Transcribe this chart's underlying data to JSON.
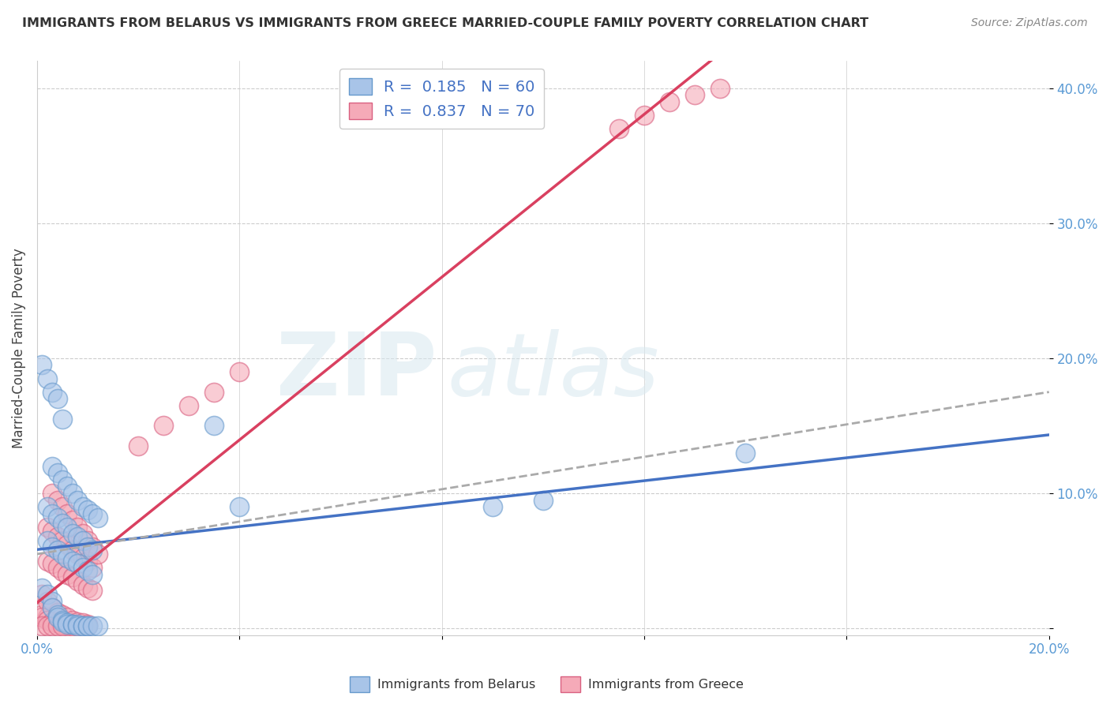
{
  "title": "IMMIGRANTS FROM BELARUS VS IMMIGRANTS FROM GREECE MARRIED-COUPLE FAMILY POVERTY CORRELATION CHART",
  "source": "Source: ZipAtlas.com",
  "ylabel": "Married-Couple Family Poverty",
  "xlim": [
    0.0,
    0.2
  ],
  "ylim": [
    -0.005,
    0.42
  ],
  "xticks": [
    0.0,
    0.04,
    0.08,
    0.12,
    0.16,
    0.2
  ],
  "yticks": [
    0.0,
    0.1,
    0.2,
    0.3,
    0.4
  ],
  "xtick_labels": [
    "0.0%",
    "",
    "",
    "",
    "",
    "20.0%"
  ],
  "ytick_labels": [
    "",
    "10.0%",
    "20.0%",
    "30.0%",
    "40.0%"
  ],
  "belarus_color": "#a8c4e8",
  "belarus_edge_color": "#6699cc",
  "greece_color": "#f5aab8",
  "greece_edge_color": "#d96080",
  "background_color": "#ffffff",
  "grid_color": "#cccccc",
  "watermark_zip": "ZIP",
  "watermark_atlas": "atlas",
  "trend_belarus_color": "#4472c4",
  "trend_greece_color": "#d94060",
  "trend_dashed_color": "#aaaaaa",
  "belarus_scatter_x": [
    0.001,
    0.002,
    0.003,
    0.003,
    0.004,
    0.004,
    0.005,
    0.005,
    0.006,
    0.006,
    0.007,
    0.007,
    0.008,
    0.008,
    0.009,
    0.009,
    0.01,
    0.01,
    0.011,
    0.012,
    0.002,
    0.003,
    0.004,
    0.005,
    0.006,
    0.007,
    0.008,
    0.009,
    0.01,
    0.011,
    0.002,
    0.003,
    0.004,
    0.005,
    0.006,
    0.007,
    0.008,
    0.009,
    0.01,
    0.011,
    0.003,
    0.004,
    0.005,
    0.006,
    0.007,
    0.008,
    0.009,
    0.01,
    0.011,
    0.012,
    0.001,
    0.002,
    0.003,
    0.004,
    0.005,
    0.04,
    0.09,
    0.1,
    0.035,
    0.14
  ],
  "belarus_scatter_y": [
    0.03,
    0.025,
    0.02,
    0.015,
    0.01,
    0.008,
    0.006,
    0.005,
    0.004,
    0.003,
    0.003,
    0.003,
    0.003,
    0.002,
    0.002,
    0.002,
    0.002,
    0.002,
    0.002,
    0.002,
    0.065,
    0.06,
    0.058,
    0.055,
    0.052,
    0.05,
    0.048,
    0.045,
    0.043,
    0.04,
    0.09,
    0.085,
    0.082,
    0.078,
    0.075,
    0.07,
    0.068,
    0.065,
    0.06,
    0.058,
    0.12,
    0.115,
    0.11,
    0.105,
    0.1,
    0.095,
    0.09,
    0.088,
    0.085,
    0.082,
    0.195,
    0.185,
    0.175,
    0.17,
    0.155,
    0.09,
    0.09,
    0.095,
    0.15,
    0.13
  ],
  "greece_scatter_x": [
    0.001,
    0.001,
    0.002,
    0.002,
    0.003,
    0.003,
    0.004,
    0.004,
    0.005,
    0.005,
    0.006,
    0.006,
    0.007,
    0.007,
    0.008,
    0.008,
    0.009,
    0.009,
    0.01,
    0.01,
    0.002,
    0.003,
    0.004,
    0.005,
    0.006,
    0.007,
    0.008,
    0.009,
    0.01,
    0.011,
    0.002,
    0.003,
    0.004,
    0.005,
    0.006,
    0.007,
    0.008,
    0.009,
    0.01,
    0.011,
    0.003,
    0.004,
    0.005,
    0.006,
    0.007,
    0.008,
    0.009,
    0.01,
    0.011,
    0.012,
    0.001,
    0.002,
    0.003,
    0.004,
    0.005,
    0.02,
    0.025,
    0.03,
    0.035,
    0.04,
    0.001,
    0.002,
    0.003,
    0.004,
    0.005,
    0.115,
    0.12,
    0.125,
    0.13,
    0.135
  ],
  "greece_scatter_y": [
    0.025,
    0.01,
    0.02,
    0.008,
    0.015,
    0.005,
    0.012,
    0.004,
    0.01,
    0.003,
    0.008,
    0.002,
    0.006,
    0.002,
    0.005,
    0.002,
    0.004,
    0.002,
    0.003,
    0.002,
    0.05,
    0.048,
    0.045,
    0.042,
    0.04,
    0.038,
    0.035,
    0.032,
    0.03,
    0.028,
    0.075,
    0.072,
    0.068,
    0.065,
    0.062,
    0.058,
    0.055,
    0.052,
    0.05,
    0.045,
    0.1,
    0.095,
    0.09,
    0.085,
    0.08,
    0.075,
    0.07,
    0.065,
    0.06,
    0.055,
    0.008,
    0.006,
    0.005,
    0.004,
    0.003,
    0.135,
    0.15,
    0.165,
    0.175,
    0.19,
    0.002,
    0.002,
    0.002,
    0.002,
    0.002,
    0.37,
    0.38,
    0.39,
    0.395,
    0.4
  ]
}
